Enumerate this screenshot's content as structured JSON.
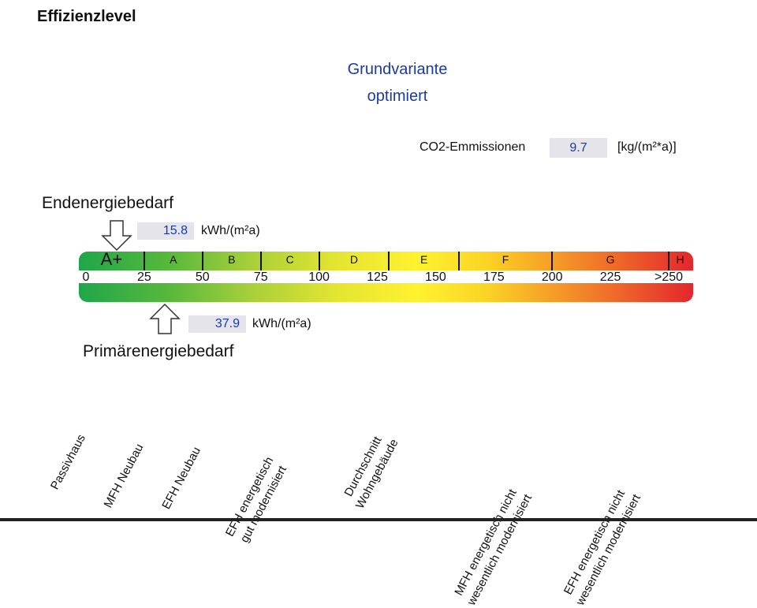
{
  "header": {
    "title": "Effizienzlevel"
  },
  "variant": {
    "line1": "Grundvariante",
    "line2": "optimiert"
  },
  "co2": {
    "label": "CO2-Emmissionen",
    "value": "9.7",
    "unit": "[kg/(m²*a)]"
  },
  "endenergie": {
    "heading": "Endenergiebedarf",
    "value": "15.8",
    "unit": "kWh/(m²a)",
    "indicator_value": 15.8
  },
  "primaerenergie": {
    "heading": "Primärenergiebedarf",
    "value": "37.9",
    "unit": "kWh/(m²a)",
    "indicator_value": 37.9
  },
  "scale": {
    "classes": [
      "A+",
      "A",
      "B",
      "C",
      "D",
      "E",
      "F",
      "G",
      "H"
    ],
    "class_bounds": [
      0,
      25,
      50,
      75,
      100,
      130,
      160,
      200,
      250
    ],
    "ticks": [
      "0",
      "25",
      "50",
      "75",
      "100",
      "125",
      "150",
      "175",
      "200",
      "225",
      ">250"
    ],
    "max": 250,
    "colors": [
      "#1fa64a",
      "#a8cf3a",
      "#fff22f",
      "#f7a327",
      "#e4262d"
    ]
  },
  "categories": {
    "passivhaus": "Passivhaus",
    "mfh_neubau": "MFH Neubau",
    "efh_neubau": "EFH Neubau",
    "efh_gut_line1": "EFH energetisch",
    "efh_gut_line2": "gut modernisiert",
    "durchschnitt_line1": "Durchschnitt",
    "durchschnitt_line2": "Wohngebäude",
    "mfh_nicht_line1": "MFH energetisch nicht",
    "mfh_nicht_line2": "wesentlich modernisiert",
    "efh_nicht_line1": "EFH energetisch nicht",
    "efh_nicht_line2": "wesentlich modernisiert"
  }
}
